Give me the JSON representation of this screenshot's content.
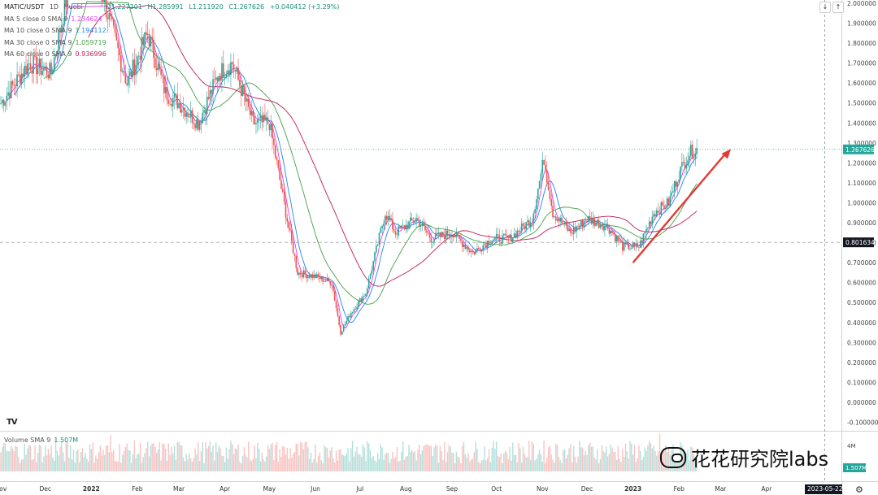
{
  "colors": {
    "up": "#26a69a",
    "down": "#ef5350",
    "ma5": "#e040fb",
    "ma10": "#1e88e5",
    "ma30": "#43a047",
    "ma60": "#c2185b",
    "arrow": "#e53935",
    "price_label_bg": "#26a69a",
    "dashed_label_bg": "#131722"
  },
  "header": {
    "symbol": "MATIC/USDT",
    "interval": "1D",
    "exchange": "Huobi",
    "open": "O1.227301",
    "high": "H1.285991",
    "low": "L1.211920",
    "close": "C1.267626",
    "change": "+0.040412 (+3.29%)"
  },
  "indicators": [
    {
      "label": "MA 5 close 0 SMA 9",
      "value": "1.234624",
      "color": "#e040fb"
    },
    {
      "label": "MA 10 close 0 SMA 9",
      "value": "1.194112",
      "color": "#1e88e5"
    },
    {
      "label": "MA 30 close 0 SMA 9",
      "value": "1.059719",
      "color": "#43a047"
    },
    {
      "label": "MA 60 close 0 SMA 9",
      "value": "0.936996",
      "color": "#c2185b"
    }
  ],
  "volume": {
    "label": "Volume SMA 9",
    "value": "1.507M",
    "axis_tick": "4M",
    "axis_value": "1.507M"
  },
  "watermark": "花花研究院labs",
  "tv_logo": "TV",
  "date_badge": "2023-05-22",
  "top_buttons": [
    "↓",
    "↑"
  ],
  "chart_data": {
    "type": "candlestick",
    "y_axis": {
      "ticks": [
        "2.000000",
        "1.900000",
        "1.800000",
        "1.700000",
        "1.600000",
        "1.500000",
        "1.400000",
        "1.300000",
        "1.200000",
        "1.100000",
        "1.000000",
        "0.900000",
        "0.800000",
        "0.700000",
        "0.600000",
        "0.500000",
        "0.400000",
        "0.300000",
        "0.200000",
        "0.100000",
        "0.000000",
        "-0.100000"
      ],
      "range": [
        -0.1,
        2.0
      ]
    },
    "x_axis": {
      "ticks": [
        "Nov",
        "Dec",
        "2022",
        "Feb",
        "Mar",
        "Apr",
        "May",
        "Jun",
        "Jul",
        "Aug",
        "Sep",
        "Oct",
        "Nov",
        "Dec",
        "2023",
        "Feb",
        "Mar",
        "Apr",
        "May"
      ]
    },
    "price_labels": [
      {
        "text": "1.267626",
        "value": 1.267626,
        "style": "last"
      },
      {
        "text": "0.801634",
        "value": 0.801634,
        "style": "crosshair"
      }
    ],
    "close_path": [
      {
        "t": "2021-11-01",
        "v": 1.5
      },
      {
        "t": "2021-11-20",
        "v": 1.7
      },
      {
        "t": "2021-12-05",
        "v": 1.65
      },
      {
        "t": "2021-12-20",
        "v": 2.2
      },
      {
        "t": "2021-12-28",
        "v": 2.5
      },
      {
        "t": "2022-01-10",
        "v": 2.0
      },
      {
        "t": "2022-01-25",
        "v": 1.6
      },
      {
        "t": "2022-02-08",
        "v": 1.85
      },
      {
        "t": "2022-02-20",
        "v": 1.55
      },
      {
        "t": "2022-03-01",
        "v": 1.5
      },
      {
        "t": "2022-03-14",
        "v": 1.4
      },
      {
        "t": "2022-03-28",
        "v": 1.65
      },
      {
        "t": "2022-04-06",
        "v": 1.7
      },
      {
        "t": "2022-04-20",
        "v": 1.4
      },
      {
        "t": "2022-05-01",
        "v": 1.4
      },
      {
        "t": "2022-05-12",
        "v": 0.95
      },
      {
        "t": "2022-05-20",
        "v": 0.65
      },
      {
        "t": "2022-06-01",
        "v": 0.63
      },
      {
        "t": "2022-06-12",
        "v": 0.6
      },
      {
        "t": "2022-06-18",
        "v": 0.35
      },
      {
        "t": "2022-06-25",
        "v": 0.45
      },
      {
        "t": "2022-07-05",
        "v": 0.55
      },
      {
        "t": "2022-07-18",
        "v": 0.95
      },
      {
        "t": "2022-07-25",
        "v": 0.85
      },
      {
        "t": "2022-08-08",
        "v": 0.92
      },
      {
        "t": "2022-08-18",
        "v": 0.82
      },
      {
        "t": "2022-09-01",
        "v": 0.85
      },
      {
        "t": "2022-09-15",
        "v": 0.75
      },
      {
        "t": "2022-09-28",
        "v": 0.82
      },
      {
        "t": "2022-10-10",
        "v": 0.82
      },
      {
        "t": "2022-10-25",
        "v": 0.92
      },
      {
        "t": "2022-11-02",
        "v": 1.22
      },
      {
        "t": "2022-11-08",
        "v": 0.95
      },
      {
        "t": "2022-11-20",
        "v": 0.85
      },
      {
        "t": "2022-12-01",
        "v": 0.92
      },
      {
        "t": "2022-12-15",
        "v": 0.88
      },
      {
        "t": "2022-12-25",
        "v": 0.78
      },
      {
        "t": "2023-01-05",
        "v": 0.78
      },
      {
        "t": "2023-01-15",
        "v": 0.95
      },
      {
        "t": "2023-01-25",
        "v": 1.0
      },
      {
        "t": "2023-02-01",
        "v": 1.15
      },
      {
        "t": "2023-02-08",
        "v": 1.25
      },
      {
        "t": "2023-02-13",
        "v": 1.27
      }
    ],
    "annotation": {
      "type": "arrow",
      "from": {
        "t": "2023-01-01",
        "v": 0.7
      },
      "to": {
        "t": "2023-03-08",
        "v": 1.27
      }
    },
    "grid": false
  }
}
